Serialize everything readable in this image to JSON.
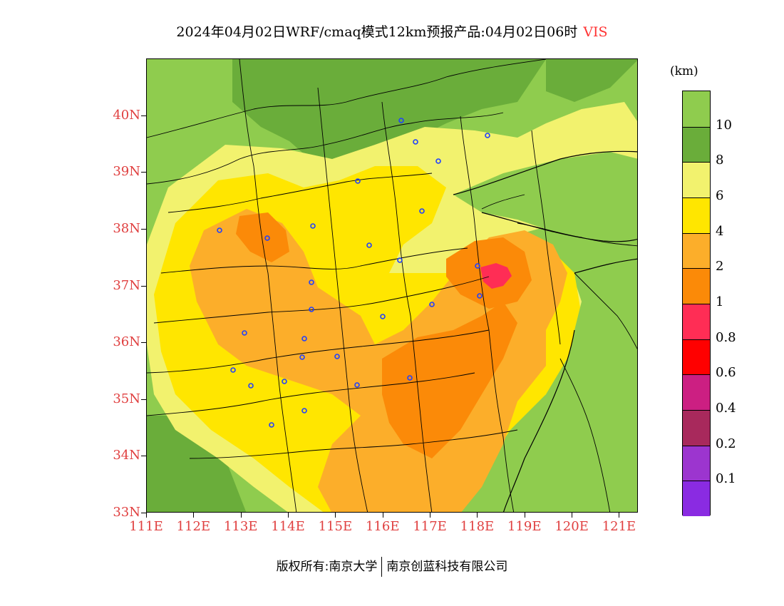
{
  "title": {
    "main": "2024年04月02日WRF/cmaq模式12km预报产品:04月02日06时",
    "variable": "VIS"
  },
  "units": "(km)",
  "map": {
    "lat_labels": [
      "40N",
      "39N",
      "38N",
      "37N",
      "36N",
      "35N",
      "34N",
      "33N"
    ],
    "lon_labels": [
      "111E",
      "112E",
      "113E",
      "114E",
      "115E",
      "116E",
      "117E",
      "118E",
      "119E",
      "120E",
      "121E"
    ],
    "lat_range": [
      33,
      41
    ],
    "lon_range": [
      111,
      121.4
    ],
    "colors": {
      "ge10": "#8fcc4e",
      "8_10": "#6aad3a",
      "6_8": "#f2f26e",
      "4_6": "#ffe600",
      "2_4": "#fcae2a",
      "1_2": "#fb8a08",
      "0.8_1": "#ff2d55",
      "0.6_0.8": "#ff0000",
      "0.4_0.6": "#cc1f82",
      "0.2_0.4": "#a8295c",
      "0.1_0.2": "#9c35cf",
      "lt0.1": "#8a2be2"
    },
    "station_color": "#2040ff"
  },
  "colorbar": {
    "segments": [
      {
        "color": "#8fcc4e"
      },
      {
        "color": "#6aad3a"
      },
      {
        "color": "#f2f26e"
      },
      {
        "color": "#ffe600"
      },
      {
        "color": "#fcae2a"
      },
      {
        "color": "#fb8a08"
      },
      {
        "color": "#ff2d55"
      },
      {
        "color": "#ff0000"
      },
      {
        "color": "#cc1f82"
      },
      {
        "color": "#a8295c"
      },
      {
        "color": "#9c35cf"
      },
      {
        "color": "#8a2be2"
      }
    ],
    "labels": [
      "10",
      "8",
      "6",
      "4",
      "2",
      "1",
      "0.8",
      "0.6",
      "0.4",
      "0.2",
      "0.1"
    ]
  },
  "footer": {
    "left": "版权所有:南京大学",
    "right": "南京创蓝科技有限公司"
  }
}
